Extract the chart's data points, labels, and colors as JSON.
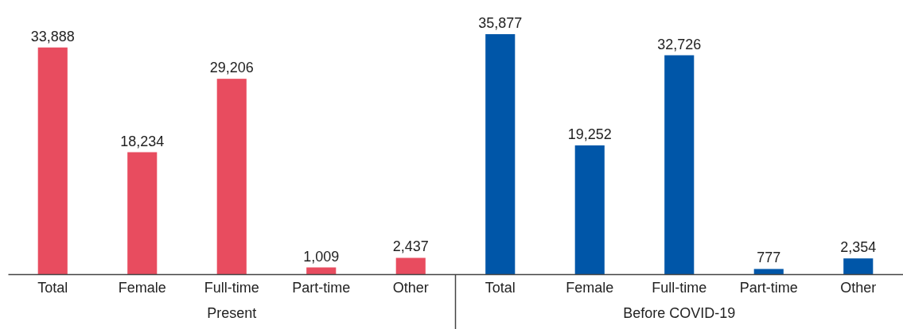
{
  "chart_data": [
    {
      "type": "bar",
      "xlabel": "Present",
      "categories": [
        "Total",
        "Female",
        "Full-time",
        "Part-time",
        "Other"
      ],
      "values": [
        33888,
        18234,
        29206,
        1009,
        2437
      ],
      "value_labels": [
        "33,888",
        "18,234",
        "29,206",
        "1,009",
        "2,437"
      ],
      "color": "#e84c5f"
    },
    {
      "type": "bar",
      "xlabel": "Before COVID-19",
      "categories": [
        "Total",
        "Female",
        "Full-time",
        "Part-time",
        "Other"
      ],
      "values": [
        35877,
        19252,
        32726,
        777,
        2354
      ],
      "value_labels": [
        "35,877",
        "19,252",
        "32,726",
        "777",
        "2,354"
      ],
      "color": "#0056a8"
    }
  ]
}
